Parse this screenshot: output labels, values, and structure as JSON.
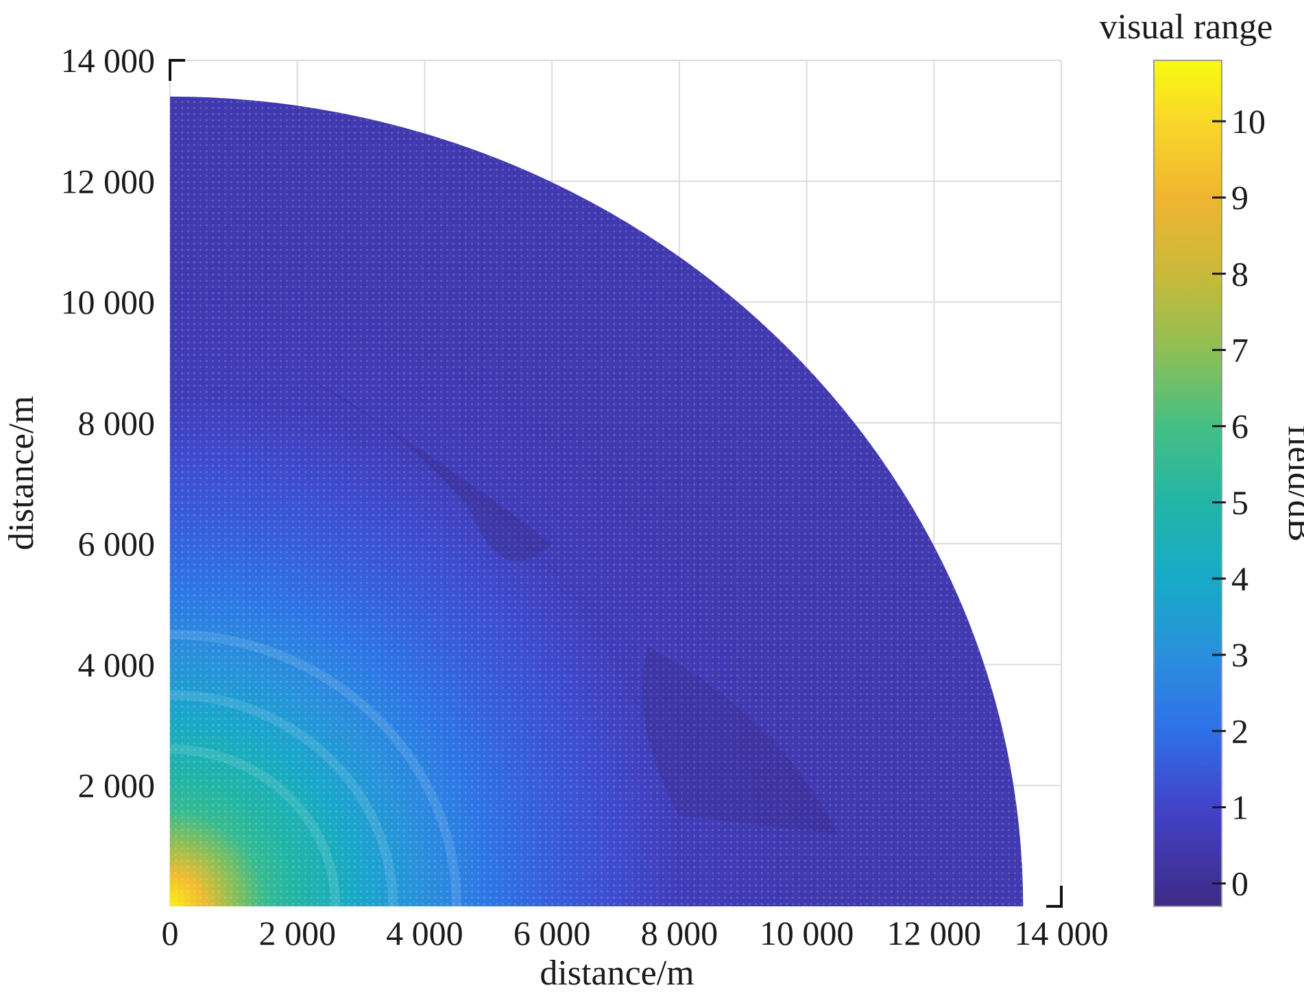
{
  "chart_data": {
    "type": "heatmap",
    "subtype": "polar quarter-disc field map",
    "title": "",
    "xlabel": "distance/m",
    "ylabel": "distance/m",
    "xlim": [
      0,
      14000
    ],
    "ylim": [
      0,
      14000
    ],
    "xticks": [
      0,
      2000,
      4000,
      6000,
      8000,
      10000,
      12000,
      14000
    ],
    "yticks": [
      2000,
      4000,
      6000,
      8000,
      10000,
      12000,
      14000
    ],
    "xtick_labels": [
      "0",
      "2 000",
      "4 000",
      "6 000",
      "8 000",
      "10 000",
      "12 000",
      "14 000"
    ],
    "ytick_labels": [
      "2 000",
      "4 000",
      "6 000",
      "8 000",
      "10 000",
      "12 000",
      "14 000"
    ],
    "grid": true,
    "max_radius": 13400,
    "colorbar": {
      "label": "field/dB",
      "title": "visual range",
      "range": [
        -0.3,
        10.8
      ],
      "ticks": [
        0,
        1,
        2,
        3,
        4,
        5,
        6,
        7,
        8,
        9,
        10
      ],
      "tick_labels": [
        "0",
        "1",
        "2",
        "3",
        "4",
        "5",
        "6",
        "7",
        "8",
        "9",
        "10"
      ],
      "colormap": "parula",
      "stops": [
        {
          "value": -0.3,
          "color": "#3e2a86"
        },
        {
          "value": 1.0,
          "color": "#4243c9"
        },
        {
          "value": 2.0,
          "color": "#2f70e8"
        },
        {
          "value": 3.0,
          "color": "#2a8fdc"
        },
        {
          "value": 4.0,
          "color": "#17aac8"
        },
        {
          "value": 5.0,
          "color": "#22b5a6"
        },
        {
          "value": 6.0,
          "color": "#45bf84"
        },
        {
          "value": 7.0,
          "color": "#8fbf55"
        },
        {
          "value": 8.0,
          "color": "#c9b93a"
        },
        {
          "value": 9.0,
          "color": "#f0b530"
        },
        {
          "value": 10.0,
          "color": "#f9d72a"
        },
        {
          "value": 10.8,
          "color": "#f8fa10"
        }
      ]
    },
    "field_profile": [
      {
        "r": 0,
        "value": 10.6
      },
      {
        "r": 500,
        "value": 9.2
      },
      {
        "r": 1000,
        "value": 7.0
      },
      {
        "r": 1500,
        "value": 5.6
      },
      {
        "r": 2000,
        "value": 5.0
      },
      {
        "r": 2600,
        "value": 4.4
      },
      {
        "r": 3000,
        "value": 3.9
      },
      {
        "r": 3500,
        "value": 3.4
      },
      {
        "r": 4000,
        "value": 3.0
      },
      {
        "r": 4500,
        "value": 2.6
      },
      {
        "r": 5000,
        "value": 2.2
      },
      {
        "r": 6000,
        "value": 1.6
      },
      {
        "r": 7000,
        "value": 1.2
      },
      {
        "r": 8000,
        "value": 0.7
      },
      {
        "r": 10000,
        "value": 0.5
      },
      {
        "r": 13400,
        "value": 0.5
      }
    ]
  }
}
